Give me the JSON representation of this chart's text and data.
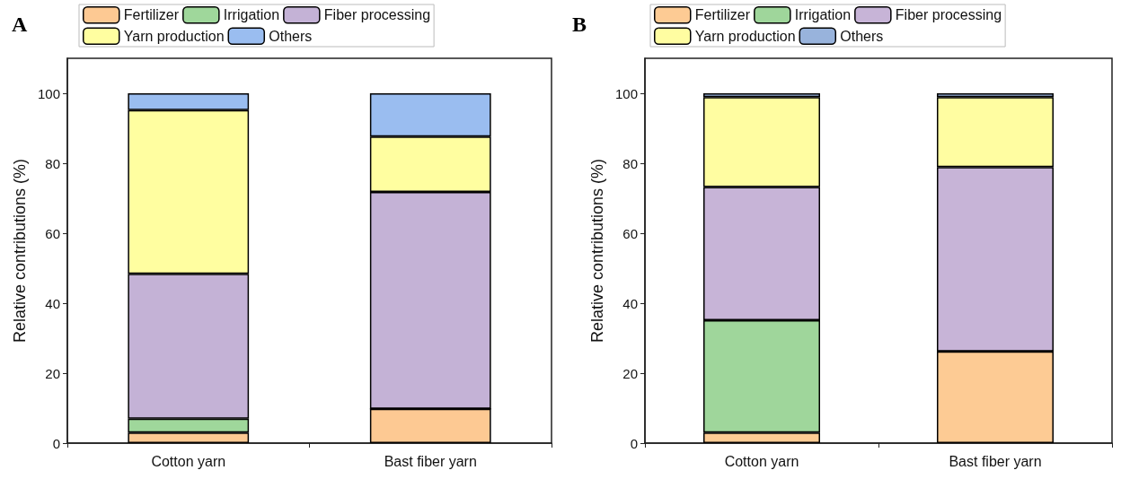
{
  "chart_data": [
    {
      "type": "bar",
      "title": "A",
      "categories": [
        "Cotton yarn",
        "Bast fiber yarn"
      ],
      "stacked": true,
      "ylabel": "Relative contributions (%)",
      "ylim": [
        0,
        110
      ],
      "yticks": [
        0,
        20,
        40,
        60,
        80,
        100
      ],
      "legend": "top",
      "grid": false,
      "series": [
        {
          "name": "Fertilizer",
          "color": "#fdc993",
          "values": [
            3.0,
            9.8
          ]
        },
        {
          "name": "Irrigation",
          "color": "#9fd79b",
          "values": [
            4.0,
            0
          ]
        },
        {
          "name": "Fiber processing",
          "color": "#c4b2d6",
          "values": [
            41.4,
            62.0
          ]
        },
        {
          "name": "Yarn production",
          "color": "#fffea0",
          "values": [
            46.8,
            15.8
          ]
        },
        {
          "name": "Others",
          "color": "#9abdf0",
          "values": [
            4.8,
            12.4
          ]
        }
      ]
    },
    {
      "type": "bar",
      "title": "B",
      "categories": [
        "Cotton yarn",
        "Bast fiber yarn"
      ],
      "stacked": true,
      "ylabel": "Relative contributions (%)",
      "ylim": [
        0,
        110
      ],
      "yticks": [
        0,
        20,
        40,
        60,
        80,
        100
      ],
      "legend": "top",
      "grid": false,
      "series": [
        {
          "name": "Fertilizer",
          "color": "#fdcb94",
          "values": [
            3.0,
            26.2
          ]
        },
        {
          "name": "Irrigation",
          "color": "#9fd69b",
          "values": [
            32.1,
            0
          ]
        },
        {
          "name": "Fiber processing",
          "color": "#c7b4d7",
          "values": [
            38.1,
            52.7
          ]
        },
        {
          "name": "Yarn production",
          "color": "#fffda1",
          "values": [
            25.7,
            20.0
          ]
        },
        {
          "name": "Others",
          "color": "#98b3dc",
          "values": [
            1.1,
            1.1
          ]
        }
      ]
    }
  ]
}
